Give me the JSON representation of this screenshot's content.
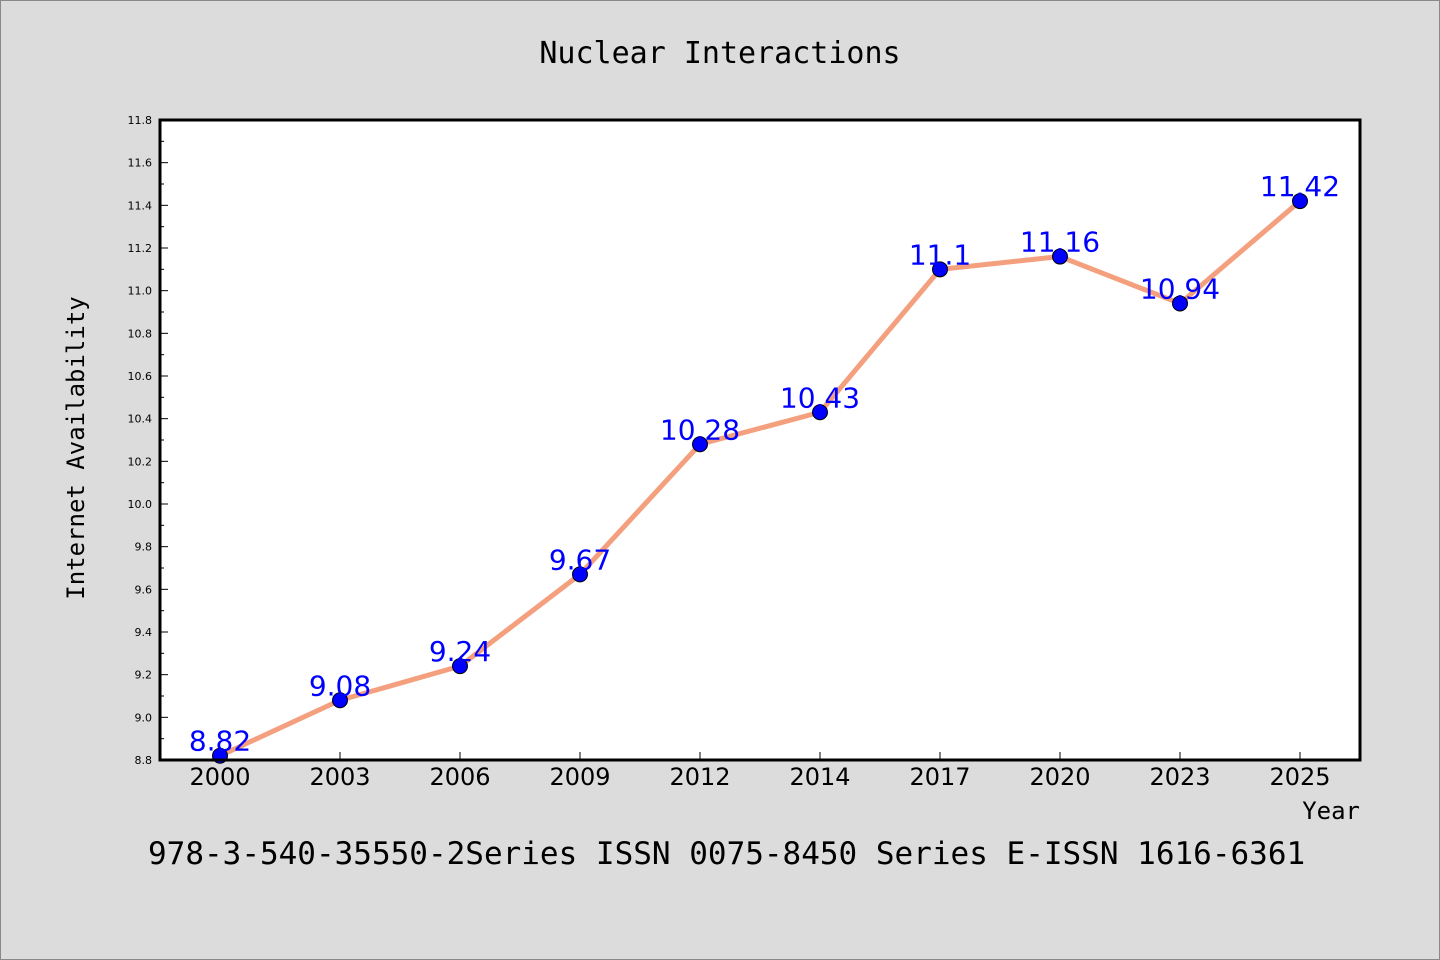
{
  "chart_data": {
    "type": "line",
    "title": "Nuclear Interactions",
    "xlabel": "Year",
    "ylabel": "Internet Availability",
    "categories": [
      "2000",
      "2003",
      "2006",
      "2009",
      "2012",
      "2014",
      "2017",
      "2020",
      "2023",
      "2025"
    ],
    "series": [
      {
        "values": [
          8.82,
          9.08,
          9.24,
          9.67,
          10.28,
          10.43,
          11.1,
          11.16,
          10.94,
          11.42
        ]
      }
    ],
    "data_labels": [
      "8.82",
      "9.08",
      "9.24",
      "9.67",
      "10.28",
      "10.43",
      "11.1",
      "11.16",
      "10.94",
      "11.42"
    ],
    "ylim": [
      8.8,
      11.8
    ],
    "yticks": [
      "8.8",
      "9.0",
      "9.2",
      "9.4",
      "9.6",
      "9.8",
      "10.0",
      "10.2",
      "10.4",
      "10.6",
      "10.8",
      "11.0",
      "11.2",
      "11.4",
      "11.6",
      "11.8"
    ],
    "grid": false,
    "colors": {
      "line": "#f4a07e",
      "marker": "#0000ff",
      "marker_edge": "#000000",
      "label": "#0000ff",
      "background": "#dcdcdc",
      "plot_background": "#ffffff"
    }
  },
  "footer_text": "978-3-540-35550-2Series ISSN 0075-8450 Series E-ISSN 1616-6361"
}
